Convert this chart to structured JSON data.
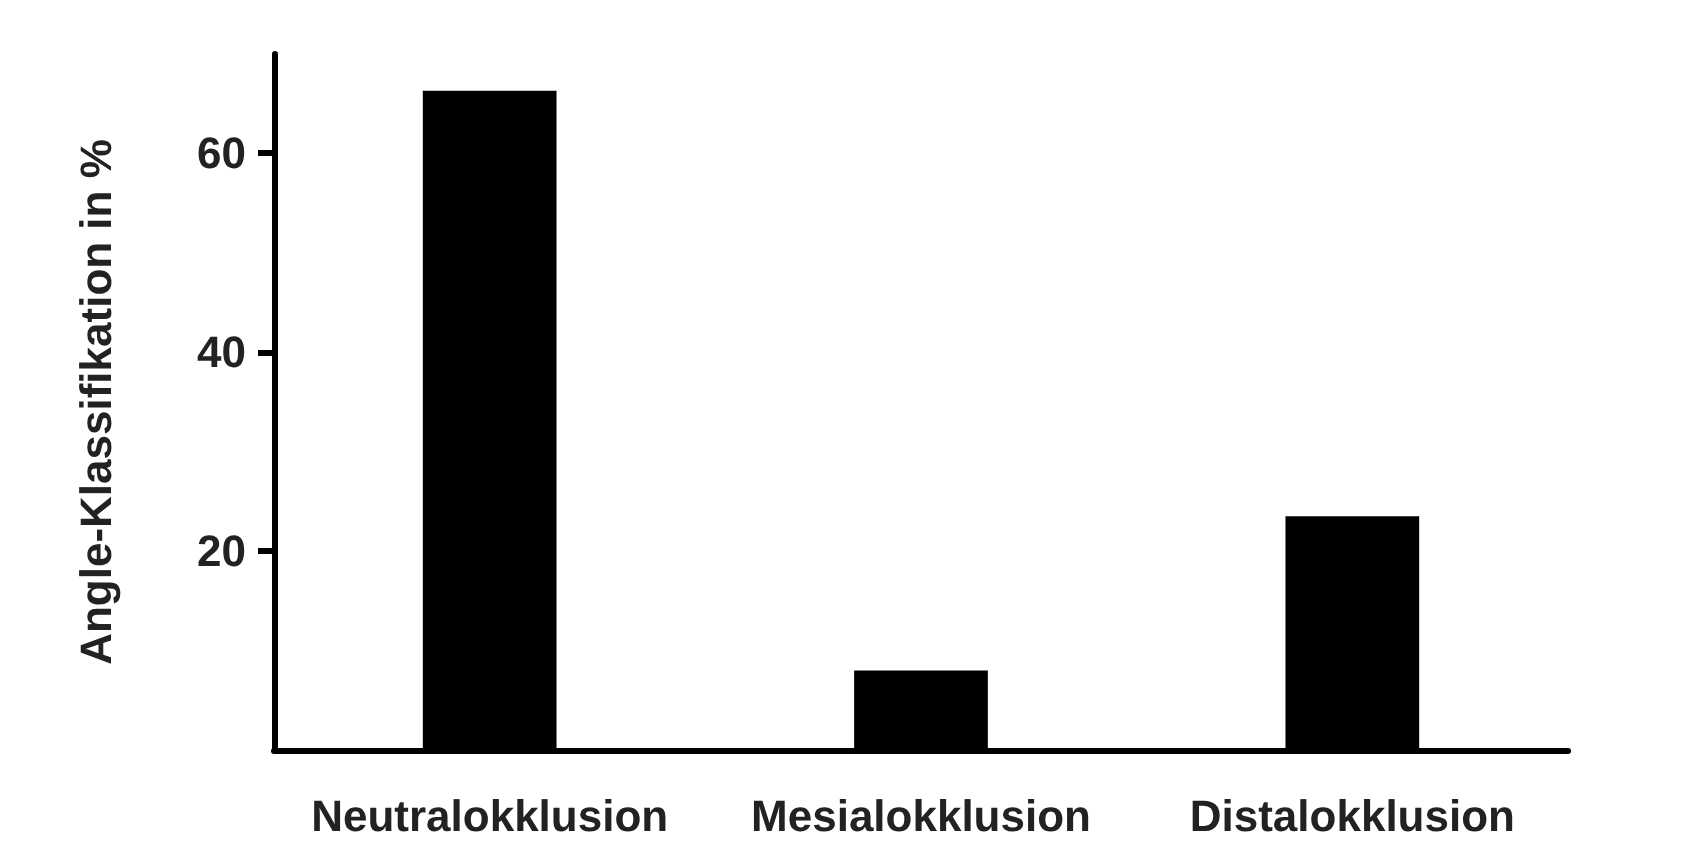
{
  "chart_data": {
    "type": "bar",
    "ylabel": "Angle-Klassifikation in %",
    "categories": [
      "Neutralokklusion",
      "Mesialokklusion",
      "Distalokklusion"
    ],
    "values": [
      66.3,
      8.0,
      23.5
    ],
    "color": "#000000",
    "ylim": [
      0,
      70
    ],
    "yticks": [
      20,
      40,
      60
    ],
    "grid": false
  }
}
